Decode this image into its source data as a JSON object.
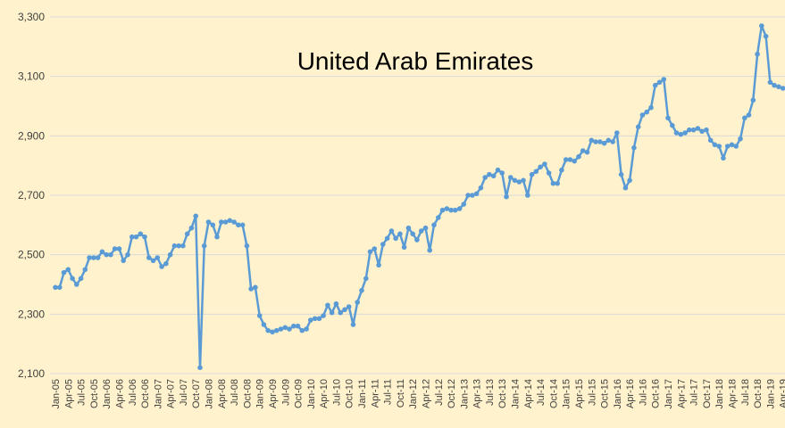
{
  "chart_data": {
    "type": "line",
    "title": "United Arab Emirates",
    "xlabel": "",
    "ylabel": "",
    "ylim": [
      2100,
      3300
    ],
    "yticks": [
      2100,
      2300,
      2500,
      2700,
      2900,
      3100,
      3300
    ],
    "ytick_labels": [
      "2,100",
      "2,300",
      "2,500",
      "2,700",
      "2,900",
      "3,100",
      "3,300"
    ],
    "grid": true,
    "legend": "none",
    "line_color": "#5B9BD5",
    "x_start": "Jan-05",
    "x_tick_labels": [
      "Jan-05",
      "Apr-05",
      "Jul-05",
      "Oct-05",
      "Jan-06",
      "Apr-06",
      "Jul-06",
      "Oct-06",
      "Jan-07",
      "Apr-07",
      "Jul-07",
      "Oct-07",
      "Jan-08",
      "Apr-08",
      "Jul-08",
      "Oct-08",
      "Jan-09",
      "Apr-09",
      "Jul-09",
      "Oct-09",
      "Jan-10",
      "Apr-10",
      "Jul-10",
      "Oct-10",
      "Jan-11",
      "Apr-11",
      "Jul-11",
      "Oct-11",
      "Jan-12",
      "Apr-12",
      "Jul-12",
      "Oct-12",
      "Jan-13",
      "Apr-13",
      "Jul-13",
      "Oct-13",
      "Jan-14",
      "Apr-14",
      "Jul-14",
      "Oct-14",
      "Jan-15",
      "Apr-15",
      "Jul-15",
      "Oct-15",
      "Jan-16",
      "Apr-16",
      "Jul-16",
      "Oct-16",
      "Jan-17",
      "Apr-17",
      "Jul-17",
      "Oct-17",
      "Jan-18",
      "Apr-18",
      "Jul-18",
      "Oct-18",
      "Jan-19",
      "Apr-19"
    ],
    "values": [
      2390,
      2390,
      2440,
      2450,
      2420,
      2400,
      2420,
      2450,
      2490,
      2490,
      2490,
      2510,
      2500,
      2500,
      2520,
      2520,
      2480,
      2500,
      2560,
      2560,
      2570,
      2560,
      2490,
      2480,
      2490,
      2460,
      2470,
      2500,
      2530,
      2530,
      2530,
      2570,
      2590,
      2630,
      2120,
      2530,
      2610,
      2600,
      2560,
      2610,
      2610,
      2615,
      2610,
      2600,
      2600,
      2530,
      2385,
      2390,
      2295,
      2265,
      2245,
      2240,
      2245,
      2250,
      2255,
      2250,
      2260,
      2260,
      2245,
      2250,
      2280,
      2285,
      2285,
      2295,
      2330,
      2305,
      2335,
      2305,
      2315,
      2325,
      2265,
      2340,
      2380,
      2420,
      2510,
      2520,
      2465,
      2535,
      2555,
      2580,
      2555,
      2570,
      2525,
      2590,
      2570,
      2550,
      2580,
      2590,
      2515,
      2600,
      2625,
      2650,
      2655,
      2650,
      2650,
      2655,
      2670,
      2700,
      2700,
      2705,
      2725,
      2760,
      2770,
      2765,
      2785,
      2775,
      2695,
      2760,
      2750,
      2745,
      2750,
      2700,
      2770,
      2780,
      2795,
      2805,
      2775,
      2740,
      2740,
      2785,
      2820,
      2820,
      2815,
      2830,
      2850,
      2845,
      2885,
      2880,
      2880,
      2875,
      2885,
      2880,
      2910,
      2770,
      2725,
      2750,
      2860,
      2930,
      2970,
      2980,
      2995,
      3070,
      3080,
      3090,
      2960,
      2935,
      2910,
      2905,
      2910,
      2920,
      2920,
      2925,
      2915,
      2920,
      2885,
      2870,
      2865,
      2825,
      2865,
      2870,
      2865,
      2890,
      2960,
      2970,
      3020,
      3175,
      3270,
      3235,
      3080,
      3070,
      3065,
      3060,
      3060
    ]
  }
}
